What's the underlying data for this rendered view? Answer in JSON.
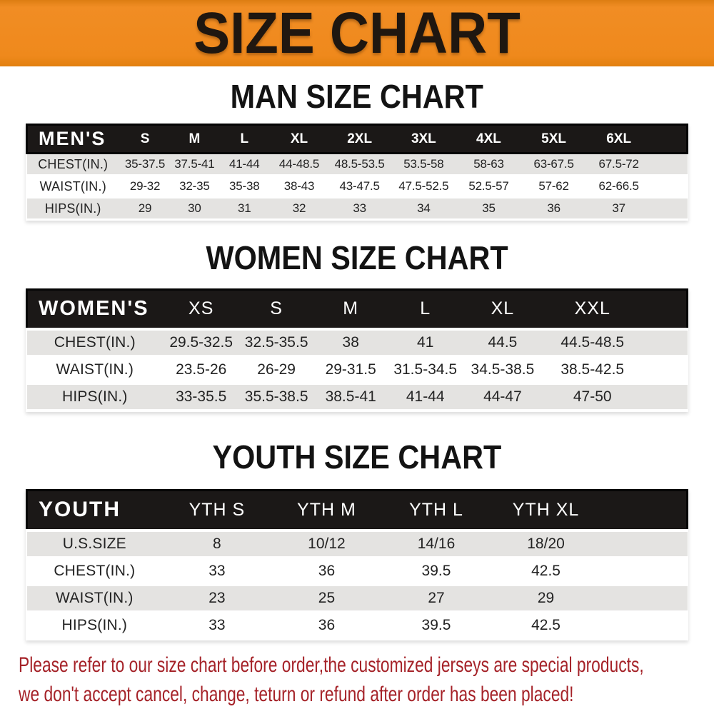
{
  "banner": {
    "title": "SIZE CHART",
    "bg_color": "#EF891C",
    "text_color": "#1F1710"
  },
  "colors": {
    "header_bar_bg": "#1B1817",
    "header_bar_text": "#FFFFFF",
    "row_alt_bg": "#E4E3E1",
    "row_bg": "#FFFFFF",
    "cell_text": "#232323",
    "heading_text": "#131313",
    "disclaimer_text": "#A52228"
  },
  "sections": [
    {
      "id": "men",
      "heading": "MAN SIZE CHART",
      "table": {
        "corner_label": "MEN'S",
        "columns": [
          "S",
          "M",
          "L",
          "XL",
          "2XL",
          "3XL",
          "4XL",
          "5XL",
          "6XL"
        ],
        "rows": [
          {
            "label": "CHEST(IN.)",
            "values": [
              "35-37.5",
              "37.5-41",
              "41-44",
              "44-48.5",
              "48.5-53.5",
              "53.5-58",
              "58-63",
              "63-67.5",
              "67.5-72"
            ]
          },
          {
            "label": "WAIST(IN.)",
            "values": [
              "29-32",
              "32-35",
              "35-38",
              "38-43",
              "43-47.5",
              "47.5-52.5",
              "52.5-57",
              "57-62",
              "62-66.5"
            ]
          },
          {
            "label": "HIPS(IN.)",
            "values": [
              "29",
              "30",
              "31",
              "32",
              "33",
              "34",
              "35",
              "36",
              "37"
            ]
          }
        ]
      }
    },
    {
      "id": "women",
      "heading": "WOMEN SIZE CHART",
      "table": {
        "corner_label": "WOMEN'S",
        "columns": [
          "XS",
          "S",
          "M",
          "L",
          "XL",
          "XXL"
        ],
        "rows": [
          {
            "label": "CHEST(IN.)",
            "values": [
              "29.5-32.5",
              "32.5-35.5",
              "38",
              "41",
              "44.5",
              "44.5-48.5"
            ]
          },
          {
            "label": "WAIST(IN.)",
            "values": [
              "23.5-26",
              "26-29",
              "29-31.5",
              "31.5-34.5",
              "34.5-38.5",
              "38.5-42.5"
            ]
          },
          {
            "label": "HIPS(IN.)",
            "values": [
              "33-35.5",
              "35.5-38.5",
              "38.5-41",
              "41-44",
              "44-47",
              "47-50"
            ]
          }
        ]
      }
    },
    {
      "id": "youth",
      "heading": "YOUTH SIZE CHART",
      "table": {
        "corner_label": "YOUTH",
        "columns": [
          "YTH S",
          "YTH M",
          "YTH L",
          "YTH XL"
        ],
        "rows": [
          {
            "label": "U.S.SIZE",
            "values": [
              "8",
              "10/12",
              "14/16",
              "18/20"
            ]
          },
          {
            "label": "CHEST(IN.)",
            "values": [
              "33",
              "36",
              "39.5",
              "42.5"
            ]
          },
          {
            "label": "WAIST(IN.)",
            "values": [
              "23",
              "25",
              "27",
              "29"
            ]
          },
          {
            "label": "HIPS(IN.)",
            "values": [
              "33",
              "36",
              "39.5",
              "42.5"
            ]
          }
        ]
      }
    }
  ],
  "disclaimer": {
    "line1": "Please refer to our size chart before order,the customized jerseys are special products,",
    "line2": "we don't accept cancel, change, teturn or refund after order has been placed!"
  }
}
